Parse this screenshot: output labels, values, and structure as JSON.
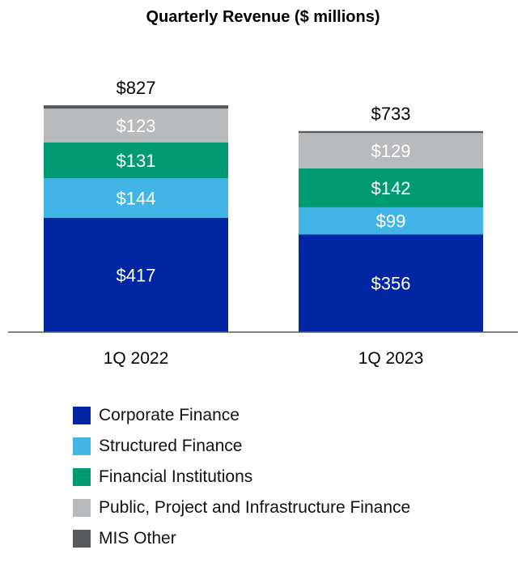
{
  "chart_data": {
    "type": "bar",
    "stacked": true,
    "title": "Quarterly Revenue ($ millions)",
    "categories": [
      "1Q 2022",
      "1Q 2023"
    ],
    "totals": [
      827,
      733
    ],
    "total_labels": [
      "$827",
      "$733"
    ],
    "series": [
      {
        "name": "Corporate Finance",
        "color": "#0027a3",
        "values": [
          417,
          356
        ],
        "labels": [
          "$417",
          "$356"
        ]
      },
      {
        "name": "Structured Finance",
        "color": "#41b6e6",
        "values": [
          144,
          99
        ],
        "labels": [
          "$144",
          "$99"
        ]
      },
      {
        "name": "Financial Institutions",
        "color": "#009a73",
        "values": [
          131,
          142
        ],
        "labels": [
          "$131",
          "$142"
        ]
      },
      {
        "name": "Public, Project and Infrastructure Finance",
        "color": "#b9babc",
        "values": [
          123,
          129
        ],
        "labels": [
          "$123",
          "$129"
        ]
      },
      {
        "name": "MIS Other",
        "color": "#58595b",
        "values": [
          12,
          7
        ],
        "labels": [
          "",
          ""
        ]
      }
    ],
    "ylim": [
      0,
      827
    ],
    "grid": false,
    "legend_position": "bottom"
  }
}
